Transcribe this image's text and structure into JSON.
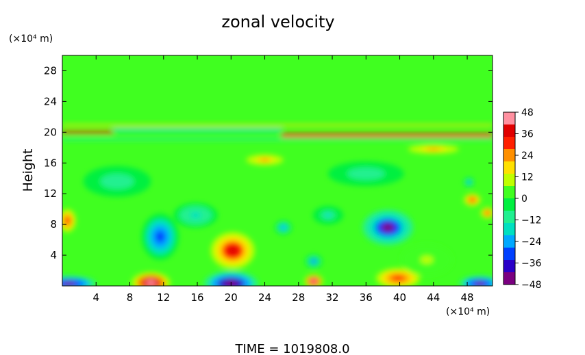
{
  "chart_data": {
    "type": "heatmap",
    "title": "zonal velocity",
    "ylabel": "Height",
    "y_unit": "(×10⁴ m)",
    "x_unit": "(×10⁴ m)",
    "footer": "TIME = 1019808.0",
    "xlim": [
      0,
      51
    ],
    "ylim": [
      0,
      30
    ],
    "x_ticks": [
      4,
      8,
      12,
      16,
      20,
      24,
      28,
      32,
      36,
      40,
      44,
      48
    ],
    "y_ticks": [
      4,
      8,
      12,
      16,
      20,
      24,
      28
    ],
    "colorbar": {
      "min": -48,
      "max": 48,
      "ticks": [
        48,
        36,
        24,
        12,
        0,
        -12,
        -24,
        -36,
        -48
      ],
      "colors": [
        "#7a0080",
        "#2a00c8",
        "#0040ff",
        "#00a8ff",
        "#00e0c0",
        "#20f090",
        "#00f040",
        "#40ff20",
        "#c0ff00",
        "#ffe000",
        "#ff9000",
        "#ff2000",
        "#e00000",
        "#ff90a0"
      ]
    },
    "background_value": 2,
    "features": [
      {
        "x": 10.5,
        "y": 0.4,
        "value": 48,
        "rx": 2.3,
        "ry": 1.4
      },
      {
        "x": 20,
        "y": 0.3,
        "value": -48,
        "rx": 3.2,
        "ry": 1.6
      },
      {
        "x": 0.8,
        "y": 0.3,
        "value": -46,
        "rx": 3.2,
        "ry": 1.0
      },
      {
        "x": 49.5,
        "y": 0.3,
        "value": -46,
        "rx": 2.4,
        "ry": 1.0
      },
      {
        "x": 29.8,
        "y": 0.6,
        "value": 42,
        "rx": 1.1,
        "ry": 0.9
      },
      {
        "x": 39.8,
        "y": 1.0,
        "value": 30,
        "rx": 2.6,
        "ry": 1.3
      },
      {
        "x": 20.2,
        "y": 4.6,
        "value": 38,
        "rx": 2.6,
        "ry": 2.4
      },
      {
        "x": 11.6,
        "y": 6.4,
        "value": -32,
        "rx": 2.2,
        "ry": 3.0
      },
      {
        "x": 38.6,
        "y": 7.6,
        "value": -42,
        "rx": 3.0,
        "ry": 2.3
      },
      {
        "x": 26.2,
        "y": 7.6,
        "value": -24,
        "rx": 1.0,
        "ry": 0.9
      },
      {
        "x": 29.8,
        "y": 3.2,
        "value": -28,
        "rx": 1.0,
        "ry": 0.9
      },
      {
        "x": 15.8,
        "y": 9.2,
        "value": -18,
        "rx": 2.6,
        "ry": 1.6
      },
      {
        "x": 31.5,
        "y": 9.2,
        "value": -14,
        "rx": 1.8,
        "ry": 1.2
      },
      {
        "x": 6.5,
        "y": 13.6,
        "value": -12,
        "rx": 4.0,
        "ry": 2.0
      },
      {
        "x": 36,
        "y": 14.6,
        "value": -12,
        "rx": 4.5,
        "ry": 1.6
      },
      {
        "x": 24,
        "y": 16.4,
        "value": 22,
        "rx": 2.2,
        "ry": 0.7
      },
      {
        "x": 48.6,
        "y": 11.2,
        "value": 30,
        "rx": 1.0,
        "ry": 0.8
      },
      {
        "x": 48.2,
        "y": 13.5,
        "value": -26,
        "rx": 0.6,
        "ry": 0.6
      },
      {
        "x": 0.6,
        "y": 8.5,
        "value": 28,
        "rx": 1.0,
        "ry": 1.5
      },
      {
        "x": 50.4,
        "y": 9.5,
        "value": 32,
        "rx": 0.8,
        "ry": 0.7
      },
      {
        "x": 44,
        "y": 17.8,
        "value": 22,
        "rx": 3.0,
        "ry": 0.6
      },
      {
        "x": 43.2,
        "y": 3.4,
        "value": 8,
        "rx": 3.0,
        "ry": 2.0
      }
    ],
    "bands": [
      {
        "y": 20.0,
        "value": 34,
        "thickness": 0.35,
        "x_from": 0,
        "x_to": 6
      },
      {
        "y": 20.3,
        "value": -14,
        "thickness": 0.4,
        "x_from": 6,
        "x_to": 26
      },
      {
        "y": 19.6,
        "value": 30,
        "thickness": 0.5,
        "x_from": 26,
        "x_to": 51
      },
      {
        "y": 20.9,
        "value": 14,
        "thickness": 0.25,
        "x_from": 0,
        "x_to": 51
      },
      {
        "y": 19.1,
        "value": -10,
        "thickness": 0.3,
        "x_from": 0,
        "x_to": 51
      }
    ]
  }
}
